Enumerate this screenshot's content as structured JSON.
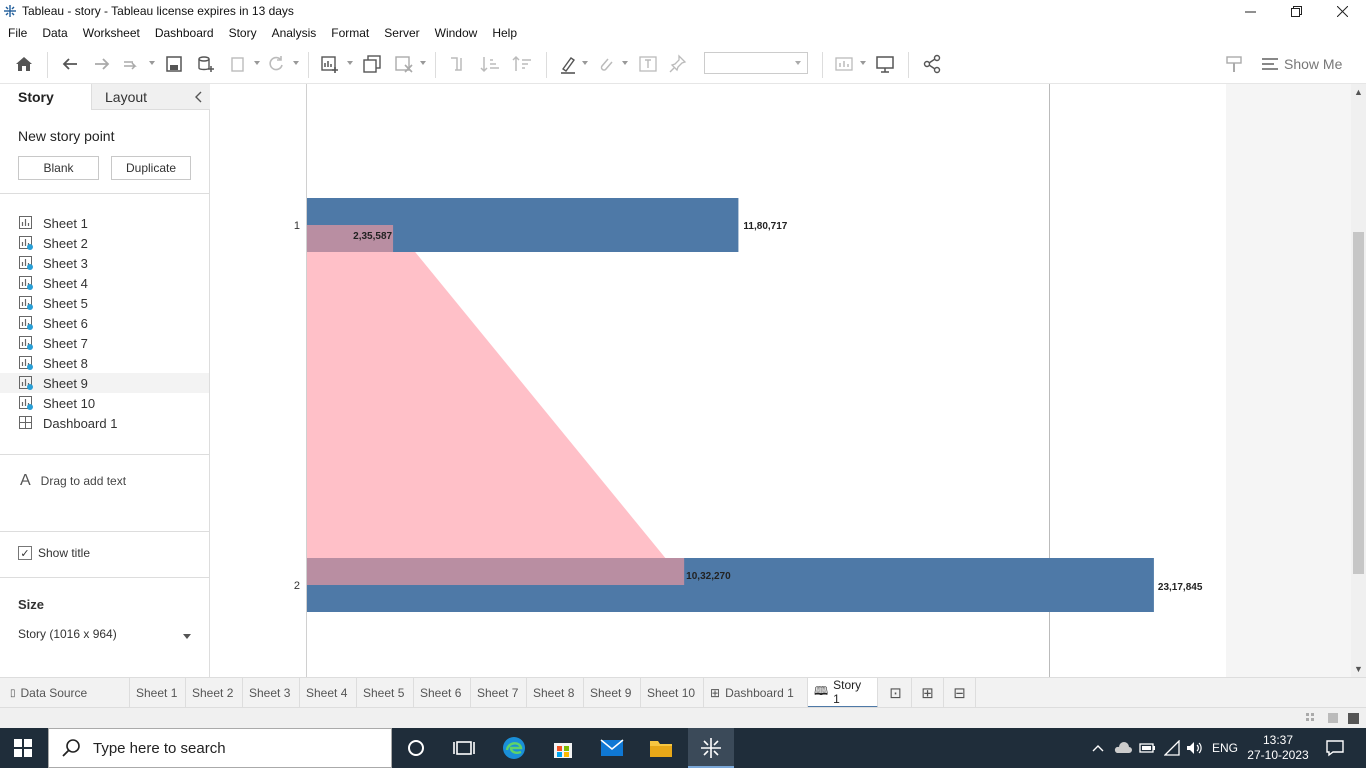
{
  "window": {
    "title": "Tableau - story - Tableau license expires in 13 days"
  },
  "menu": [
    "File",
    "Data",
    "Worksheet",
    "Dashboard",
    "Story",
    "Analysis",
    "Format",
    "Server",
    "Window",
    "Help"
  ],
  "toolbar": {
    "show_me": "Show Me"
  },
  "left_panel": {
    "tab_story": "Story",
    "tab_layout": "Layout",
    "new_story_point": "New story point",
    "blank_button": "Blank",
    "duplicate_button": "Duplicate",
    "sheets": [
      "Sheet 1",
      "Sheet 2",
      "Sheet 3",
      "Sheet 4",
      "Sheet 5",
      "Sheet 6",
      "Sheet 7",
      "Sheet 8",
      "Sheet 9",
      "Sheet 10",
      "Dashboard 1"
    ],
    "drag_text": "Drag to add text",
    "show_title": "Show title",
    "size_label": "Size",
    "size_value": "Story (1016 x 964)"
  },
  "chart_data": {
    "type": "bar",
    "categories": [
      "1",
      "2"
    ],
    "series": [
      {
        "values": [
          1180717,
          2317845
        ],
        "color": "#4e79a7"
      },
      {
        "values": [
          235587,
          1032270
        ],
        "color": "#ffc0c8"
      }
    ],
    "data_labels": [
      {
        "category": "1",
        "series": 0,
        "text": "11,80,717"
      },
      {
        "category": "1",
        "series": 1,
        "text": "2,35,587"
      },
      {
        "category": "2",
        "series": 1,
        "text": "10,32,270"
      },
      {
        "category": "2",
        "series": 0,
        "text": "23,17,845"
      }
    ],
    "xlim": [
      0,
      2600000
    ],
    "band_color": "#ffc0c8",
    "overlap_color": "#b98ea2"
  },
  "sheet_tabs": {
    "data_source": "Data Source",
    "tabs": [
      "Sheet 1",
      "Sheet 2",
      "Sheet 3",
      "Sheet 4",
      "Sheet 5",
      "Sheet 6",
      "Sheet 7",
      "Sheet 8",
      "Sheet 9",
      "Sheet 10",
      "Dashboard 1",
      "Story 1"
    ]
  },
  "taskbar": {
    "search_placeholder": "Type here to search",
    "language": "ENG",
    "time": "13:37",
    "date": "27-10-2023"
  }
}
